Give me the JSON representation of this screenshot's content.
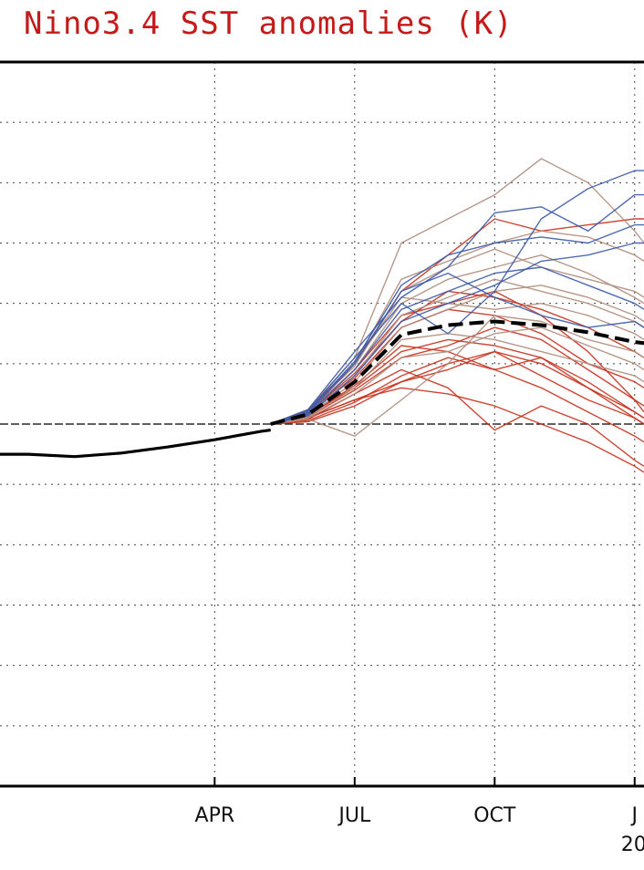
{
  "chart_data": {
    "type": "line",
    "title": "Nino3.4 SST anomalies (K)",
    "xlabel": "",
    "ylabel": "",
    "x_axis": {
      "ticks": [
        {
          "label": "APR",
          "month": 3
        },
        {
          "label": "JUL",
          "month": 6
        },
        {
          "label": "OCT",
          "month": 9
        },
        {
          "label": "J",
          "month": 12
        }
      ],
      "year_label_partial": "20",
      "xlim_month": [
        -1.6,
        12.2
      ]
    },
    "ylim": [
      -3.0,
      3.0
    ],
    "y_grid": [
      -3,
      -2.5,
      -2,
      -1.5,
      -1,
      -0.5,
      0,
      0.5,
      1,
      1.5,
      2,
      2.5,
      3
    ],
    "zero_line": true,
    "grid": true,
    "colors": {
      "title": "#c41a1a",
      "observed": "#000000",
      "ensemble_mean": "#000000",
      "ensemble_red": "#c8321e",
      "ensemble_tan": "#b08c7c",
      "ensemble_blue": "#3c5aa8",
      "grid": "#444444"
    },
    "observed": {
      "name": "",
      "x": [
        -1.6,
        -1.0,
        0.0,
        1.0,
        2.0,
        3.0,
        4.0,
        4.2
      ],
      "y": [
        -0.25,
        -0.25,
        -0.27,
        -0.24,
        -0.19,
        -0.13,
        -0.06,
        -0.05
      ]
    },
    "ensemble_mean": {
      "name": "",
      "x": [
        4.2,
        5.0,
        6.0,
        7.0,
        8.0,
        9.0,
        10.0,
        11.0,
        12.0,
        12.2
      ],
      "y": [
        0.0,
        0.08,
        0.35,
        0.74,
        0.82,
        0.85,
        0.82,
        0.76,
        0.68,
        0.67
      ]
    },
    "members": [
      {
        "color": "red",
        "y": [
          0.0,
          0.1,
          0.45,
          0.9,
          1.0,
          1.1,
          0.9,
          0.6,
          0.2,
          0.1
        ]
      },
      {
        "color": "red",
        "y": [
          0.0,
          0.05,
          0.2,
          0.3,
          0.25,
          0.15,
          0.0,
          -0.15,
          -0.35,
          -0.4
        ]
      },
      {
        "color": "red",
        "y": [
          0.0,
          0.12,
          0.5,
          1.1,
          1.4,
          1.7,
          1.6,
          1.65,
          1.7,
          1.7
        ]
      },
      {
        "color": "red",
        "y": [
          0.0,
          0.02,
          0.15,
          0.35,
          0.5,
          0.6,
          0.4,
          0.2,
          0.05,
          0.0
        ]
      },
      {
        "color": "red",
        "y": [
          0.0,
          0.08,
          0.3,
          0.6,
          0.7,
          0.65,
          0.55,
          0.35,
          0.1,
          0.05
        ]
      },
      {
        "color": "red",
        "y": [
          0.0,
          0.04,
          0.25,
          0.45,
          0.3,
          -0.05,
          0.15,
          0.0,
          -0.3,
          -0.35
        ]
      },
      {
        "color": "red",
        "y": [
          0.0,
          0.1,
          0.38,
          0.8,
          0.95,
          0.9,
          0.75,
          0.5,
          0.35,
          0.3
        ]
      },
      {
        "color": "red",
        "y": [
          0.0,
          0.06,
          0.28,
          0.55,
          0.65,
          0.8,
          0.7,
          0.45,
          0.2,
          0.15
        ]
      },
      {
        "color": "red",
        "y": [
          0.0,
          0.03,
          0.18,
          0.4,
          0.55,
          0.45,
          0.3,
          0.1,
          -0.1,
          -0.15
        ]
      },
      {
        "color": "red",
        "y": [
          0.0,
          0.09,
          0.42,
          0.85,
          1.1,
          1.05,
          0.95,
          0.8,
          0.6,
          0.55
        ]
      },
      {
        "color": "red",
        "y": [
          0.0,
          0.05,
          0.2,
          0.35,
          0.45,
          0.6,
          0.5,
          0.3,
          0.1,
          0.05
        ]
      },
      {
        "color": "red",
        "y": [
          0.0,
          0.07,
          0.32,
          0.65,
          0.6,
          0.45,
          0.55,
          0.3,
          0.05,
          0.0
        ]
      },
      {
        "color": "tan",
        "y": [
          0.0,
          0.12,
          0.55,
          1.5,
          1.7,
          1.9,
          2.2,
          2.0,
          1.6,
          1.5
        ]
      },
      {
        "color": "tan",
        "y": [
          0.0,
          0.1,
          0.5,
          1.2,
          1.35,
          1.5,
          1.6,
          1.55,
          1.4,
          1.35
        ]
      },
      {
        "color": "tan",
        "y": [
          0.0,
          0.08,
          0.4,
          0.9,
          1.05,
          1.2,
          1.1,
          1.0,
          0.85,
          0.8
        ]
      },
      {
        "color": "tan",
        "y": [
          0.0,
          0.06,
          0.3,
          0.7,
          0.75,
          0.7,
          0.6,
          0.5,
          0.4,
          0.35
        ]
      },
      {
        "color": "tan",
        "y": [
          0.0,
          0.09,
          0.45,
          1.0,
          1.2,
          1.3,
          1.4,
          1.25,
          1.05,
          1.0
        ]
      },
      {
        "color": "tan",
        "y": [
          0.0,
          0.04,
          -0.1,
          0.2,
          0.5,
          0.9,
          0.85,
          0.7,
          0.6,
          0.55
        ]
      },
      {
        "color": "tan",
        "y": [
          0.0,
          0.1,
          0.5,
          1.05,
          1.0,
          0.95,
          1.0,
          0.9,
          0.75,
          0.7
        ]
      },
      {
        "color": "tan",
        "y": [
          0.0,
          0.07,
          0.35,
          0.8,
          0.95,
          1.1,
          1.15,
          1.05,
          0.9,
          0.85
        ]
      },
      {
        "color": "tan",
        "y": [
          0.0,
          0.05,
          0.25,
          0.55,
          0.6,
          0.75,
          0.8,
          0.65,
          0.5,
          0.45
        ]
      },
      {
        "color": "tan",
        "y": [
          0.0,
          0.11,
          0.48,
          1.1,
          1.3,
          1.45,
          1.3,
          1.2,
          1.1,
          1.05
        ]
      },
      {
        "color": "blue",
        "y": [
          0.0,
          0.12,
          0.6,
          1.05,
          1.3,
          1.75,
          1.8,
          1.6,
          1.9,
          1.9
        ]
      },
      {
        "color": "blue",
        "y": [
          0.0,
          0.1,
          0.52,
          1.15,
          1.4,
          1.5,
          1.55,
          1.5,
          1.65,
          1.65
        ]
      },
      {
        "color": "blue",
        "y": [
          0.0,
          0.08,
          0.45,
          0.95,
          1.1,
          1.25,
          1.3,
          1.15,
          1.0,
          0.95
        ]
      },
      {
        "color": "blue",
        "y": [
          0.0,
          0.11,
          0.55,
          1.0,
          0.75,
          1.1,
          1.7,
          1.95,
          2.1,
          2.1
        ]
      },
      {
        "color": "blue",
        "y": [
          0.0,
          0.09,
          0.5,
          1.1,
          1.25,
          1.05,
          0.9,
          0.8,
          0.85,
          0.8
        ]
      },
      {
        "color": "blue",
        "y": [
          0.0,
          0.07,
          0.4,
          0.85,
          1.0,
          1.15,
          1.35,
          1.4,
          1.5,
          1.5
        ]
      }
    ],
    "members_x": [
      4.2,
      5.0,
      6.0,
      7.0,
      8.0,
      9.0,
      10.0,
      11.0,
      12.0,
      12.2
    ]
  }
}
